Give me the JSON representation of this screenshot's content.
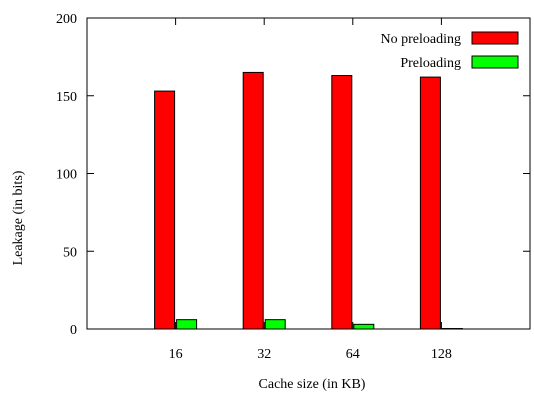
{
  "chart_data": {
    "type": "bar",
    "title": "",
    "xlabel": "Cache size (in KB)",
    "ylabel": "Leakage (in bits)",
    "categories": [
      "16",
      "32",
      "64",
      "128"
    ],
    "series": [
      {
        "name": "No preloading",
        "color": "#ff0000",
        "values": [
          153,
          165,
          163,
          162
        ]
      },
      {
        "name": "Preloading",
        "color": "#00ff00",
        "values": [
          6,
          6,
          3,
          0.3
        ]
      }
    ],
    "ylim": [
      0,
      200
    ],
    "yticks": [
      0,
      50,
      100,
      150,
      200
    ],
    "grid": false,
    "legend_position": "top-right"
  }
}
